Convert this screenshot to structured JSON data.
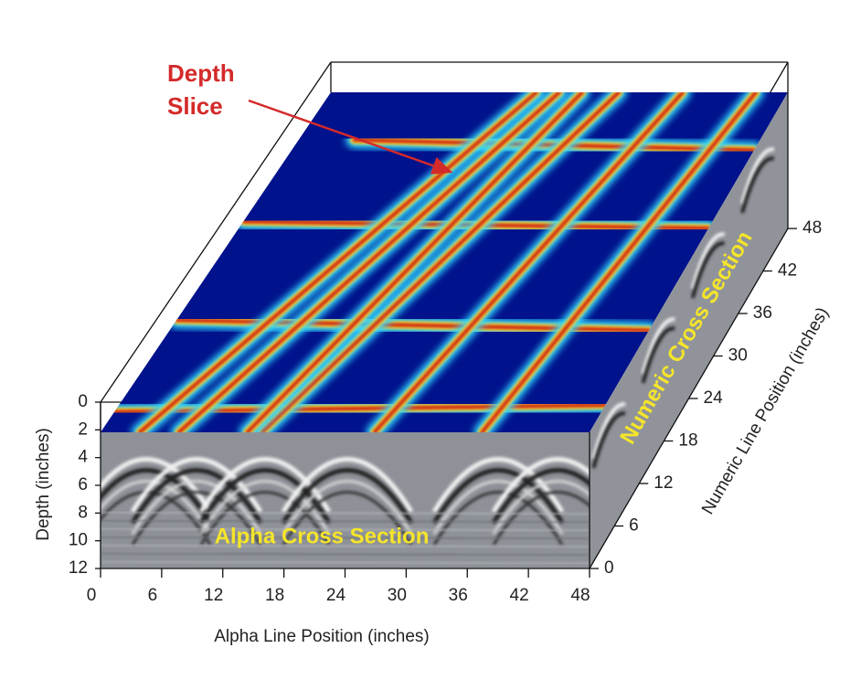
{
  "chart_data": {
    "type": "volume",
    "annotations": {
      "depth_slice": [
        "Depth",
        "Slice"
      ],
      "alpha_section": "Alpha Cross Section",
      "numeric_section": "Numeric Cross Section"
    },
    "xlabel": "Alpha Line Position (inches)",
    "xlim": [
      0,
      48
    ],
    "xticks": [
      0,
      6,
      12,
      18,
      24,
      30,
      36,
      42,
      48
    ],
    "ylabel": "Depth (inches)",
    "ylim": [
      0,
      12
    ],
    "yticks": [
      0,
      2,
      4,
      6,
      8,
      10,
      12
    ],
    "zlabel": "Numeric Line Position (inches)",
    "zlim": [
      0,
      48
    ],
    "zticks": [
      0,
      6,
      12,
      18,
      24,
      30,
      36,
      42,
      48
    ]
  }
}
